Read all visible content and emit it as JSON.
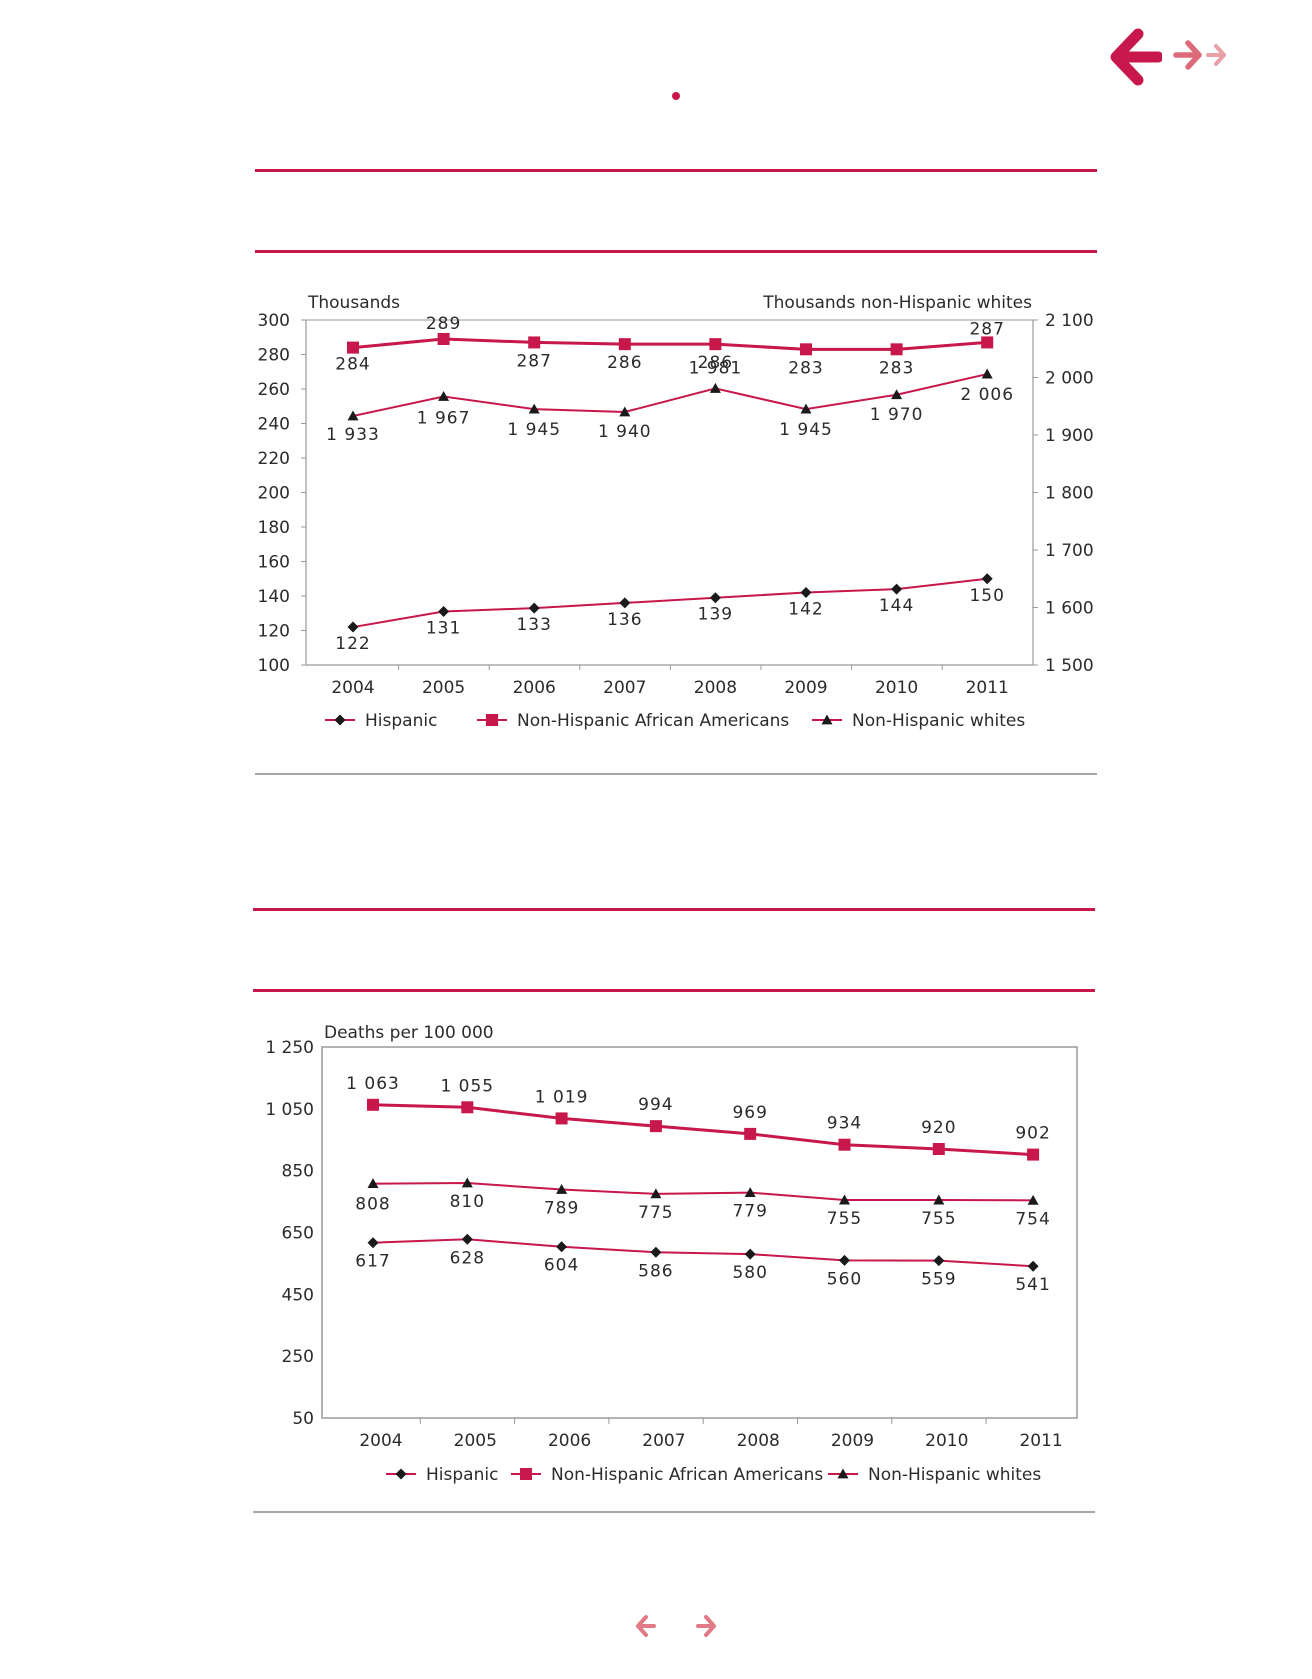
{
  "colors": {
    "accent": "#c8174a",
    "line": "#c8174a",
    "marker_dark": "#1a1a1a",
    "rule_grey": "#a6a6a6",
    "nav_light": "#e07b86"
  },
  "nav": {
    "top_back_icon": "arrow-left-icon",
    "top_forward_icon": "arrow-right-icon",
    "top_last_icon": "arrow-right-icon",
    "bottom_prev_icon": "arrow-left-icon",
    "bottom_next_icon": "arrow-right-icon"
  },
  "chart_data": [
    {
      "type": "line",
      "title": "",
      "ylabel": "Thousands",
      "y2label": "Thousands non-Hispanic whites",
      "ylim": [
        100,
        300
      ],
      "y2lim": [
        1500,
        2100
      ],
      "yticks": [
        "100",
        "120",
        "140",
        "160",
        "180",
        "200",
        "220",
        "240",
        "260",
        "280",
        "300"
      ],
      "y2ticks": [
        "1 500",
        "1 600",
        "1 700",
        "1 800",
        "1 900",
        "2 000",
        "2 100"
      ],
      "categories": [
        "2004",
        "2005",
        "2006",
        "2007",
        "2008",
        "2009",
        "2010",
        "2011"
      ],
      "grid": false,
      "legend_position": "bottom",
      "series": [
        {
          "name": "Hispanic",
          "axis": "left",
          "marker": "diamond",
          "values": [
            122,
            131,
            133,
            136,
            139,
            142,
            144,
            150
          ],
          "labels": [
            "122",
            "131",
            "133",
            "136",
            "139",
            "142",
            "144",
            "150"
          ]
        },
        {
          "name": "Non-Hispanic African Americans",
          "axis": "left",
          "marker": "square",
          "values": [
            284,
            289,
            287,
            286,
            286,
            283,
            283,
            287
          ],
          "labels": [
            "284",
            "289",
            "287",
            "286",
            "286",
            "283",
            "283",
            "287"
          ]
        },
        {
          "name": "Non-Hispanic whites",
          "axis": "right",
          "marker": "triangle",
          "values": [
            1933,
            1967,
            1945,
            1940,
            1981,
            1945,
            1970,
            2006
          ],
          "labels": [
            "1 933",
            "1 967",
            "1 945",
            "1 940",
            "1 981",
            "1 945",
            "1 970",
            "2 006"
          ]
        }
      ]
    },
    {
      "type": "line",
      "title": "",
      "ylabel": "Deaths per 100 000",
      "ylim": [
        50,
        1250
      ],
      "yticks": [
        "50",
        "250",
        "450",
        "650",
        "850",
        "1 050",
        "1 250"
      ],
      "categories": [
        "2004",
        "2005",
        "2006",
        "2007",
        "2008",
        "2009",
        "2010",
        "2011"
      ],
      "grid": false,
      "legend_position": "bottom",
      "series": [
        {
          "name": "Hispanic",
          "marker": "diamond",
          "values": [
            617,
            628,
            604,
            586,
            580,
            560,
            559,
            541
          ],
          "labels": [
            "617",
            "628",
            "604",
            "586",
            "580",
            "560",
            "559",
            "541"
          ]
        },
        {
          "name": "Non-Hispanic African Americans",
          "marker": "square",
          "values": [
            1063,
            1055,
            1019,
            994,
            969,
            934,
            920,
            902
          ],
          "labels": [
            "1 063",
            "1 055",
            "1 019",
            "994",
            "969",
            "934",
            "920",
            "902"
          ]
        },
        {
          "name": "Non-Hispanic whites",
          "marker": "triangle",
          "values": [
            808,
            810,
            789,
            775,
            779,
            755,
            755,
            754
          ],
          "labels": [
            "808",
            "810",
            "789",
            "775",
            "779",
            "755",
            "755",
            "754"
          ]
        }
      ]
    }
  ]
}
